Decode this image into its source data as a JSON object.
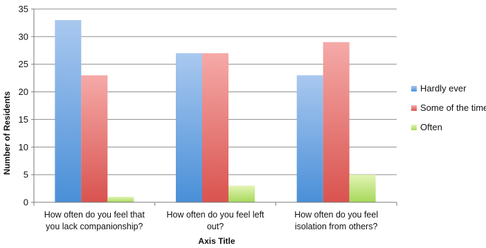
{
  "chart_data": {
    "type": "bar",
    "title": "",
    "xlabel": "Axis Title",
    "ylabel": "Number of Residents",
    "ylim": [
      0,
      35
    ],
    "yticks": [
      0,
      5,
      10,
      15,
      20,
      25,
      30,
      35
    ],
    "grid": true,
    "legend_position": "right",
    "categories": [
      [
        "How often do you feel that",
        "you lack companionship?"
      ],
      [
        "How often do you feel left",
        "out?"
      ],
      [
        "How often do you feel",
        "isolation from others?"
      ]
    ],
    "series": [
      {
        "name": "Hardly ever",
        "values": [
          33,
          27,
          23
        ],
        "color_top": "#a9c8ef",
        "color_bottom": "#4a8fd8"
      },
      {
        "name": "Some of the time",
        "values": [
          23,
          27,
          29
        ],
        "color_top": "#f5aaa8",
        "color_bottom": "#d9534f"
      },
      {
        "name": "Often",
        "values": [
          1,
          3,
          5
        ],
        "color_top": "#e2f4b4",
        "color_bottom": "#a6d85a"
      }
    ]
  }
}
